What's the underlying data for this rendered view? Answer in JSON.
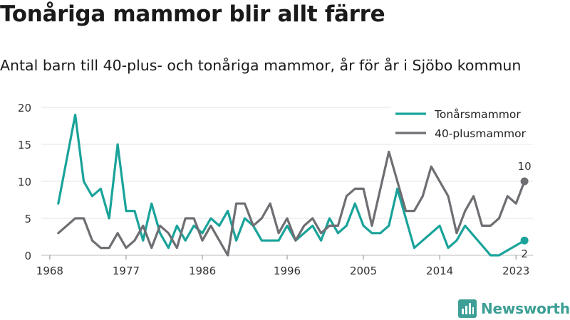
{
  "title": "Tonåriga mammor blir allt färre",
  "subtitle": "Antal barn till 40-plus- och tonåriga mammor, år för år i Sjöbo kommun",
  "brand": {
    "name": "Newsworthy",
    "color": "#3d9f95"
  },
  "chart_data": {
    "type": "line",
    "xlim": [
      1967,
      2025
    ],
    "ylim": [
      0,
      20
    ],
    "x_ticks": [
      1968,
      1977,
      1986,
      1996,
      2005,
      2014,
      2023
    ],
    "y_ticks": [
      0,
      5,
      10,
      15,
      20
    ],
    "grid": "horizontal",
    "legend_position": "top-right",
    "x": [
      1969,
      1970,
      1971,
      1972,
      1973,
      1974,
      1975,
      1976,
      1977,
      1978,
      1979,
      1980,
      1981,
      1982,
      1983,
      1984,
      1985,
      1986,
      1987,
      1988,
      1989,
      1990,
      1991,
      1992,
      1993,
      1994,
      1995,
      1996,
      1997,
      1998,
      1999,
      2000,
      2001,
      2002,
      2003,
      2004,
      2005,
      2006,
      2007,
      2008,
      2009,
      2010,
      2011,
      2012,
      2013,
      2014,
      2015,
      2016,
      2017,
      2018,
      2019,
      2020,
      2021,
      2022,
      2023,
      2024
    ],
    "series": [
      {
        "name": "Tonårsmammor",
        "color": "#1aa39a",
        "end_label": "2",
        "values": [
          7,
          null,
          19,
          10,
          8,
          9,
          5,
          15,
          6,
          6,
          2,
          7,
          3,
          1,
          4,
          2,
          4,
          3,
          5,
          4,
          6,
          2,
          5,
          4,
          2,
          2,
          2,
          4,
          2,
          3,
          4,
          2,
          5,
          3,
          4,
          7,
          4,
          3,
          3,
          4,
          9,
          null,
          1,
          null,
          null,
          4,
          1,
          2,
          4,
          null,
          null,
          0,
          0,
          null,
          null,
          2
        ]
      },
      {
        "name": "40-plusmammor",
        "color": "#6e6e73",
        "end_label": "10",
        "values": [
          3,
          4,
          5,
          5,
          2,
          1,
          1,
          3,
          1,
          2,
          4,
          1,
          4,
          3,
          1,
          5,
          5,
          2,
          4,
          2,
          0,
          7,
          7,
          4,
          5,
          7,
          3,
          5,
          2,
          4,
          5,
          3,
          4,
          4,
          8,
          9,
          9,
          4,
          null,
          14,
          null,
          6,
          6,
          8,
          12,
          null,
          8,
          3,
          6,
          8,
          4,
          4,
          5,
          8,
          7,
          10
        ]
      }
    ]
  }
}
